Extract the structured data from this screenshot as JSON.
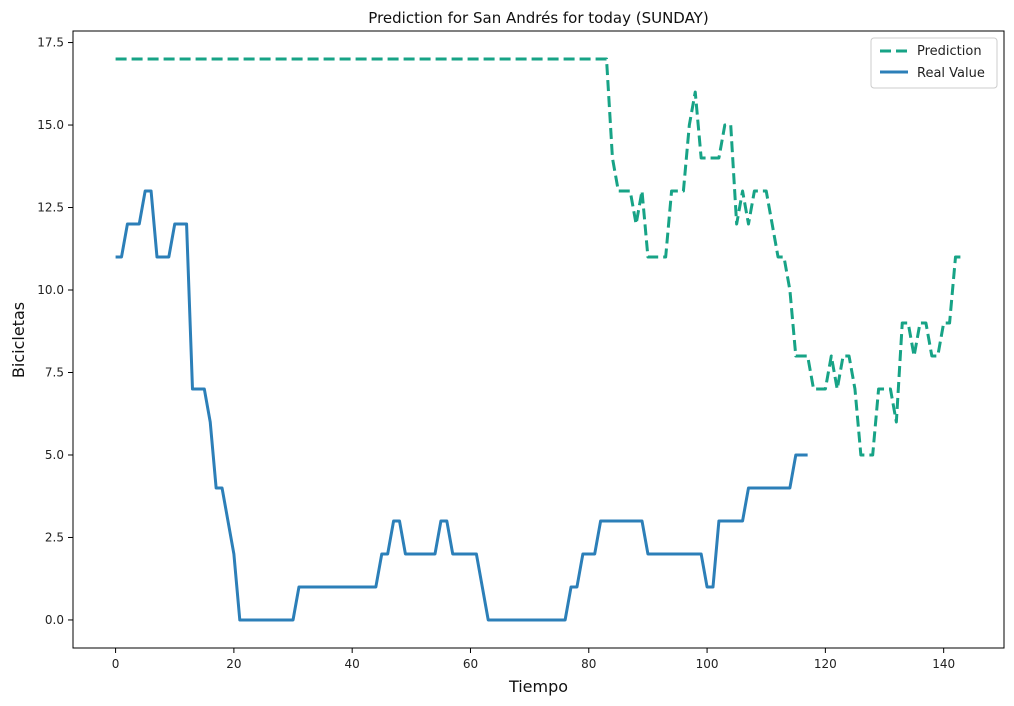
{
  "chart_data": {
    "type": "line",
    "title": "Prediction for San Andrés for today (SUNDAY)",
    "xlabel": "Tiempo",
    "ylabel": "Bicicletas",
    "xlim": [
      -7.2,
      150.2
    ],
    "ylim": [
      -0.85,
      17.85
    ],
    "xticks": [
      0,
      20,
      40,
      60,
      80,
      100,
      120,
      140
    ],
    "xtick_labels": [
      "0",
      "20",
      "40",
      "60",
      "80",
      "100",
      "120",
      "140"
    ],
    "yticks": [
      0,
      2.5,
      5,
      7.5,
      10,
      12.5,
      15,
      17.5
    ],
    "ytick_labels": [
      "0.0",
      "2.5",
      "5.0",
      "7.5",
      "10.0",
      "12.5",
      "15.0",
      "17.5"
    ],
    "grid": false,
    "legend_position": "top-right",
    "series": [
      {
        "name": "Prediction",
        "color": "#17a386",
        "style": "dashed",
        "x": [
          0,
          83,
          84,
          85,
          86,
          87,
          88,
          89,
          90,
          91,
          92,
          93,
          94,
          95,
          96,
          97,
          98,
          99,
          100,
          101,
          102,
          103,
          104,
          105,
          106,
          107,
          108,
          109,
          110,
          111,
          112,
          113,
          114,
          115,
          116,
          117,
          118,
          119,
          120,
          121,
          122,
          123,
          124,
          125,
          126,
          127,
          128,
          129,
          130,
          131,
          132,
          133,
          134,
          135,
          136,
          137,
          138,
          139,
          140,
          141,
          142,
          143
        ],
        "values": [
          17,
          17,
          14,
          13,
          13,
          13,
          12,
          13,
          11,
          11,
          11,
          11,
          13,
          13,
          13,
          15,
          16,
          14,
          14,
          14,
          14,
          15,
          15,
          12,
          13,
          12,
          13,
          13,
          13,
          12,
          11,
          11,
          10,
          8,
          8,
          8,
          7,
          7,
          7,
          8,
          7,
          8,
          8,
          7,
          5,
          5,
          5,
          7,
          7,
          7,
          6,
          9,
          9,
          8,
          9,
          9,
          8,
          8,
          9,
          9,
          11,
          11
        ]
      },
      {
        "name": "Real Value",
        "color": "#2c7fb8",
        "style": "solid",
        "x": [
          0,
          1,
          2,
          3,
          4,
          5,
          6,
          7,
          8,
          9,
          10,
          11,
          12,
          13,
          14,
          15,
          16,
          17,
          18,
          19,
          20,
          21,
          22,
          23,
          24,
          25,
          26,
          27,
          28,
          29,
          30,
          31,
          32,
          33,
          34,
          35,
          36,
          37,
          38,
          39,
          40,
          41,
          42,
          43,
          44,
          45,
          46,
          47,
          48,
          49,
          50,
          51,
          52,
          53,
          54,
          55,
          56,
          57,
          58,
          59,
          60,
          61,
          62,
          63,
          64,
          65,
          66,
          67,
          68,
          69,
          70,
          71,
          72,
          73,
          74,
          75,
          76,
          77,
          78,
          79,
          80,
          81,
          82,
          83,
          84,
          85,
          86,
          87,
          88,
          89,
          90,
          91,
          92,
          93,
          94,
          95,
          96,
          97,
          98,
          99,
          100,
          101,
          102,
          103,
          104,
          105,
          106,
          107,
          108,
          109,
          110,
          111,
          112,
          113,
          114,
          115,
          116,
          117
        ],
        "values": [
          11,
          11,
          12,
          12,
          12,
          13,
          13,
          11,
          11,
          11,
          12,
          12,
          12,
          7,
          7,
          7,
          6,
          4,
          4,
          3,
          2,
          0,
          0,
          0,
          0,
          0,
          0,
          0,
          0,
          0,
          0,
          1,
          1,
          1,
          1,
          1,
          1,
          1,
          1,
          1,
          1,
          1,
          1,
          1,
          1,
          2,
          2,
          3,
          3,
          2,
          2,
          2,
          2,
          2,
          2,
          3,
          3,
          2,
          2,
          2,
          2,
          2,
          1,
          0,
          0,
          0,
          0,
          0,
          0,
          0,
          0,
          0,
          0,
          0,
          0,
          0,
          0,
          1,
          1,
          2,
          2,
          2,
          3,
          3,
          3,
          3,
          3,
          3,
          3,
          3,
          2,
          2,
          2,
          2,
          2,
          2,
          2,
          2,
          2,
          2,
          1,
          1,
          3,
          3,
          3,
          3,
          3,
          4,
          4,
          4,
          4,
          4,
          4,
          4,
          4,
          5,
          5,
          5
        ]
      }
    ]
  }
}
